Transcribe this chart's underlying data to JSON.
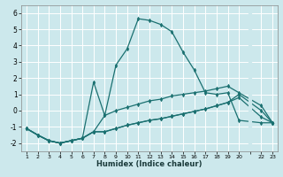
{
  "xlabel": "Humidex (Indice chaleur)",
  "background_color": "#cce8ec",
  "grid_color": "#ffffff",
  "line_color": "#1a7070",
  "xlim": [
    0.5,
    23.5
  ],
  "ylim": [
    -2.5,
    6.5
  ],
  "yticks": [
    -2,
    -1,
    0,
    1,
    2,
    3,
    4,
    5,
    6
  ],
  "xtick_labels": [
    "1",
    "2",
    "3",
    "4",
    "5",
    "6",
    "7",
    "8",
    "9",
    "10",
    "11",
    "12",
    "13",
    "14",
    "15",
    "16",
    "17",
    "18",
    "19",
    "20",
    "",
    "22",
    "23"
  ],
  "xtick_positions": [
    1,
    2,
    3,
    4,
    5,
    6,
    7,
    8,
    9,
    10,
    11,
    12,
    13,
    14,
    15,
    16,
    17,
    18,
    19,
    20,
    21,
    22,
    23
  ],
  "curves": [
    {
      "x": [
        1,
        2,
        3,
        4,
        5,
        6,
        7,
        8,
        9,
        10,
        11,
        12,
        13,
        14,
        15,
        16,
        17,
        18,
        19,
        20,
        22,
        23
      ],
      "y": [
        -1.1,
        -1.5,
        -1.85,
        -2.0,
        -1.85,
        -1.7,
        1.75,
        -0.3,
        2.8,
        3.8,
        5.65,
        5.55,
        5.3,
        4.85,
        3.6,
        2.5,
        1.1,
        1.0,
        1.1,
        -0.6,
        -0.75,
        -0.75
      ]
    },
    {
      "x": [
        1,
        2,
        3,
        4,
        5,
        6,
        7,
        8,
        9,
        10,
        11,
        12,
        13,
        14,
        15,
        16,
        17,
        18,
        19,
        20,
        22,
        23
      ],
      "y": [
        -1.1,
        -1.5,
        -1.85,
        -2.0,
        -1.85,
        -1.7,
        -1.3,
        -0.3,
        0.0,
        0.2,
        0.4,
        0.6,
        0.7,
        0.9,
        1.0,
        1.1,
        1.2,
        1.35,
        1.5,
        1.1,
        0.3,
        -0.75
      ]
    },
    {
      "x": [
        1,
        2,
        3,
        4,
        5,
        6,
        7,
        8,
        9,
        10,
        11,
        12,
        13,
        14,
        15,
        16,
        17,
        18,
        19,
        20,
        22,
        23
      ],
      "y": [
        -1.1,
        -1.5,
        -1.85,
        -2.0,
        -1.85,
        -1.7,
        -1.3,
        -1.3,
        -1.1,
        -0.9,
        -0.75,
        -0.6,
        -0.5,
        -0.35,
        -0.2,
        -0.05,
        0.1,
        0.3,
        0.5,
        1.0,
        0.0,
        -0.75
      ]
    },
    {
      "x": [
        1,
        2,
        3,
        4,
        5,
        6,
        7,
        8,
        9,
        10,
        11,
        12,
        13,
        14,
        15,
        16,
        17,
        18,
        19,
        20,
        22,
        23
      ],
      "y": [
        -1.1,
        -1.5,
        -1.85,
        -2.0,
        -1.85,
        -1.7,
        -1.3,
        -1.3,
        -1.1,
        -0.9,
        -0.75,
        -0.6,
        -0.5,
        -0.35,
        -0.2,
        -0.05,
        0.1,
        0.3,
        0.5,
        0.8,
        -0.4,
        -0.75
      ]
    }
  ],
  "marker": "d",
  "markersize": 2.5,
  "linewidth": 0.9
}
